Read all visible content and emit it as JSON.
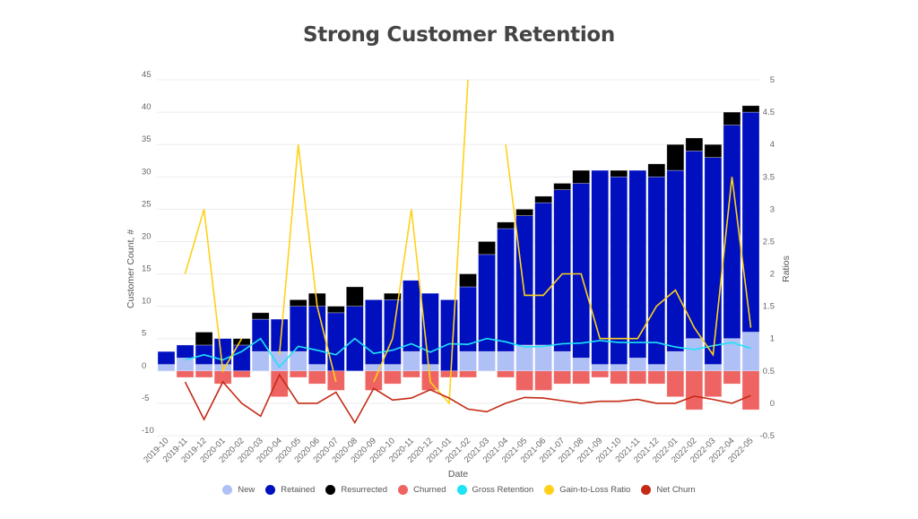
{
  "chart_data": {
    "type": "bar",
    "title": "Strong Customer Retention",
    "xlabel": "Date",
    "ylabel": "Customer Count, #",
    "y2label": "Ratios",
    "ylim": [
      -10,
      45
    ],
    "y2lim": [
      -0.5,
      5
    ],
    "yticks": [
      -10,
      -5,
      0,
      5,
      10,
      15,
      20,
      25,
      30,
      35,
      40,
      45
    ],
    "y2ticks": [
      "-0.5",
      "0",
      "0.5",
      "1",
      "1.5",
      "2",
      "2.5",
      "3",
      "3.5",
      "4",
      "4.5",
      "5"
    ],
    "grid": true,
    "legend_position": "bottom",
    "categories": [
      "2019-10",
      "2019-11",
      "2019-12",
      "2020-01",
      "2020-02",
      "2020-03",
      "2020-04",
      "2020-05",
      "2020-06",
      "2020-07",
      "2020-08",
      "2020-09",
      "2020-10",
      "2020-11",
      "2020-12",
      "2021-01",
      "2021-02",
      "2021-03",
      "2021-04",
      "2021-05",
      "2021-06",
      "2021-07",
      "2021-08",
      "2021-09",
      "2021-10",
      "2021-11",
      "2021-12",
      "2022-01",
      "2022-02",
      "2022-03",
      "2022-04",
      "2022-05"
    ],
    "series": [
      {
        "name": "New",
        "kind": "bar",
        "axis": "left",
        "color": "#aec0f6",
        "values": [
          1,
          2,
          1,
          1,
          0,
          3,
          3,
          3,
          1,
          0,
          0,
          1,
          1,
          3,
          1,
          0,
          3,
          3,
          3,
          4,
          4,
          3,
          2,
          1,
          1,
          2,
          1,
          3,
          5,
          1,
          5,
          6
        ]
      },
      {
        "name": "Retained",
        "kind": "bar",
        "axis": "left",
        "color": "#0010bf",
        "values": [
          2,
          2,
          3,
          4,
          4,
          5,
          5,
          7,
          9,
          9,
          10,
          10,
          10,
          11,
          11,
          11,
          10,
          15,
          19,
          20,
          22,
          25,
          27,
          30,
          29,
          29,
          29,
          28,
          29,
          32,
          33,
          34
        ]
      },
      {
        "name": "Resurrected",
        "kind": "bar",
        "axis": "left",
        "color": "#000000",
        "values": [
          0,
          0,
          2,
          0,
          1,
          1,
          0,
          1,
          2,
          1,
          3,
          0,
          1,
          0,
          0,
          0,
          2,
          2,
          1,
          1,
          1,
          1,
          2,
          0,
          1,
          0,
          2,
          4,
          2,
          2,
          2,
          1
        ]
      },
      {
        "name": "Churned",
        "kind": "bar",
        "axis": "left",
        "color": "#ee6463",
        "values": [
          0,
          -1,
          -1,
          -2,
          -1,
          0,
          -4,
          -1,
          -2,
          -3,
          0,
          -3,
          -2,
          -1,
          -3,
          -1,
          -1,
          0,
          -1,
          -3,
          -3,
          -2,
          -2,
          -1,
          -2,
          -2,
          -2,
          -4,
          -6,
          -4,
          -2,
          -6
        ]
      },
      {
        "name": "Gross Retention",
        "kind": "line",
        "axis": "right",
        "color": "#1ee3f7",
        "values": [
          null,
          0.67,
          0.75,
          0.67,
          0.8,
          1.0,
          0.56,
          0.88,
          0.82,
          0.75,
          1.0,
          0.77,
          0.82,
          0.92,
          0.79,
          0.92,
          0.91,
          1.0,
          0.95,
          0.87,
          0.88,
          0.92,
          0.93,
          0.97,
          0.94,
          0.94,
          0.94,
          0.87,
          0.83,
          0.89,
          0.94,
          0.85
        ]
      },
      {
        "name": "Gain-to-Loss Ratio",
        "kind": "line",
        "axis": "right",
        "color": "#ffd11a",
        "values": [
          null,
          2,
          3,
          0.5,
          1,
          null,
          0.75,
          4,
          1.5,
          0.33,
          null,
          0.33,
          1,
          3,
          0.33,
          0,
          5,
          null,
          4,
          1.67,
          1.67,
          2,
          2,
          1,
          1,
          1,
          1.5,
          1.75,
          1.17,
          0.75,
          3.5,
          1.17
        ]
      },
      {
        "name": "Net Churn",
        "kind": "line",
        "axis": "right",
        "color": "#c52a16",
        "values": [
          null,
          0.33,
          -0.25,
          0.33,
          0,
          -0.2,
          0.44,
          0,
          0,
          0.17,
          -0.3,
          0.23,
          0.05,
          0.08,
          0.21,
          0.08,
          -0.09,
          -0.13,
          0,
          0.09,
          0.08,
          0.04,
          0,
          0.03,
          0.03,
          0.06,
          0,
          0,
          0.11,
          0.06,
          0,
          0.12
        ]
      }
    ]
  }
}
